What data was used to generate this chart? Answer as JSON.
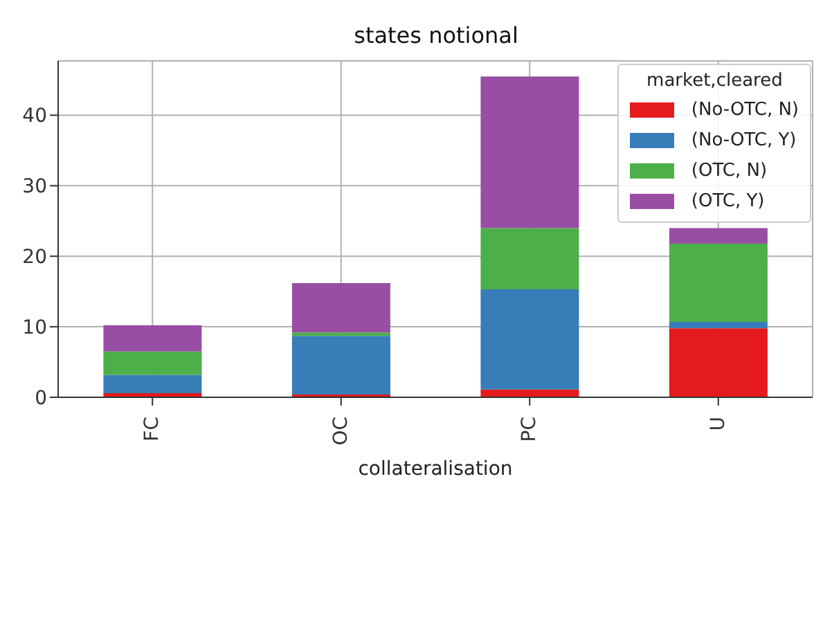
{
  "chart_data": {
    "type": "bar",
    "title": "states notional",
    "xlabel": "collateralisation",
    "legend_title": "market,cleared",
    "categories": [
      "FC",
      "OC",
      "PC",
      "U"
    ],
    "series": [
      {
        "name": "(No-OTC, N)",
        "color": "#e41a1c",
        "values": [
          0.6,
          0.4,
          1.1,
          9.8
        ]
      },
      {
        "name": "(No-OTC, Y)",
        "color": "#377eb8",
        "values": [
          2.6,
          8.3,
          14.2,
          0.9
        ]
      },
      {
        "name": "(OTC, N)",
        "color": "#4daf4a",
        "values": [
          3.3,
          0.5,
          8.7,
          11.1
        ]
      },
      {
        "name": "(OTC, Y)",
        "color": "#984ea3",
        "values": [
          3.7,
          7.0,
          21.5,
          2.2
        ]
      }
    ],
    "stacked": true,
    "ylim": [
      0,
      47.7
    ],
    "yticks": [
      0,
      10,
      20,
      30,
      40
    ],
    "grid": true,
    "legend": "top right"
  }
}
